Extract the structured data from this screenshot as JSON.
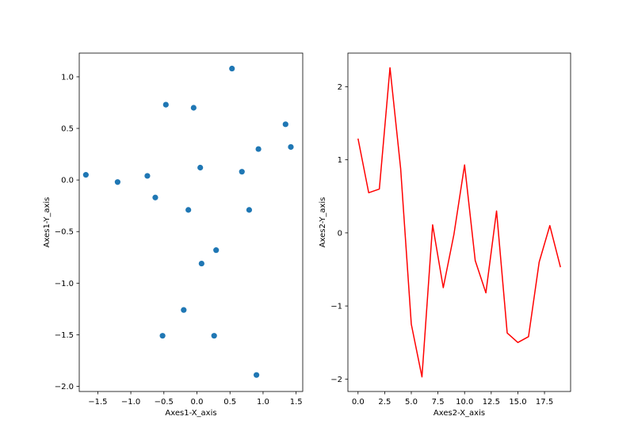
{
  "chart_data": [
    {
      "type": "scatter",
      "title": "",
      "xlabel": "Axes1-X_axis",
      "ylabel": "Axes1-Y_axis",
      "xlim": [
        -1.78,
        1.6
      ],
      "ylim": [
        -2.05,
        1.23
      ],
      "xticks": [
        -1.5,
        -1.0,
        -0.5,
        0.0,
        0.5,
        1.0,
        1.5
      ],
      "xtick_labels": [
        "−1.5",
        "−1.0",
        "−0.5",
        "0.0",
        "0.5",
        "1.0",
        "1.5"
      ],
      "yticks": [
        -2.0,
        -1.5,
        -1.0,
        -0.5,
        0.0,
        0.5,
        1.0
      ],
      "ytick_labels": [
        "−2.0",
        "−1.5",
        "−1.0",
        "−0.5",
        "0.0",
        "0.5",
        "1.0"
      ],
      "grid": false,
      "color": "#1f77b4",
      "points": [
        {
          "x": -1.68,
          "y": 0.05
        },
        {
          "x": -1.2,
          "y": -0.02
        },
        {
          "x": -0.75,
          "y": 0.04
        },
        {
          "x": -0.63,
          "y": -0.17
        },
        {
          "x": -0.47,
          "y": 0.73
        },
        {
          "x": -0.52,
          "y": -1.51
        },
        {
          "x": -0.2,
          "y": -1.26
        },
        {
          "x": -0.13,
          "y": -0.29
        },
        {
          "x": -0.05,
          "y": 0.7
        },
        {
          "x": 0.05,
          "y": 0.12
        },
        {
          "x": 0.07,
          "y": -0.81
        },
        {
          "x": 0.26,
          "y": -1.51
        },
        {
          "x": 0.29,
          "y": -0.68
        },
        {
          "x": 0.53,
          "y": 1.08
        },
        {
          "x": 0.68,
          "y": 0.08
        },
        {
          "x": 0.79,
          "y": -0.29
        },
        {
          "x": 0.9,
          "y": -1.89
        },
        {
          "x": 0.93,
          "y": 0.3
        },
        {
          "x": 1.34,
          "y": 0.54
        },
        {
          "x": 1.42,
          "y": 0.32
        }
      ]
    },
    {
      "type": "line",
      "title": "",
      "xlabel": "Axes2-X_axis",
      "ylabel": "Axes2-Y_axis",
      "xlim": [
        -0.95,
        19.95
      ],
      "ylim": [
        -2.17,
        2.46
      ],
      "xticks": [
        0,
        2.5,
        5,
        7.5,
        10,
        12.5,
        15,
        17.5
      ],
      "xtick_labels": [
        "0.0",
        "2.5",
        "5.0",
        "7.5",
        "10.0",
        "12.5",
        "15.0",
        "17.5"
      ],
      "yticks": [
        -2,
        -1,
        0,
        1,
        2
      ],
      "ytick_labels": [
        "−2",
        "−1",
        "0",
        "1",
        "2"
      ],
      "grid": false,
      "color": "#ff0000",
      "x": [
        0,
        1,
        2,
        3,
        4,
        5,
        6,
        7,
        8,
        9,
        10,
        11,
        12,
        13,
        14,
        15,
        16,
        17,
        18,
        19
      ],
      "y": [
        1.29,
        0.55,
        0.6,
        2.26,
        0.88,
        -1.25,
        -1.97,
        0.11,
        -0.75,
        -0.02,
        0.93,
        -0.38,
        -0.82,
        0.3,
        -1.37,
        -1.5,
        -1.42,
        -0.4,
        0.1,
        -0.47
      ]
    }
  ]
}
